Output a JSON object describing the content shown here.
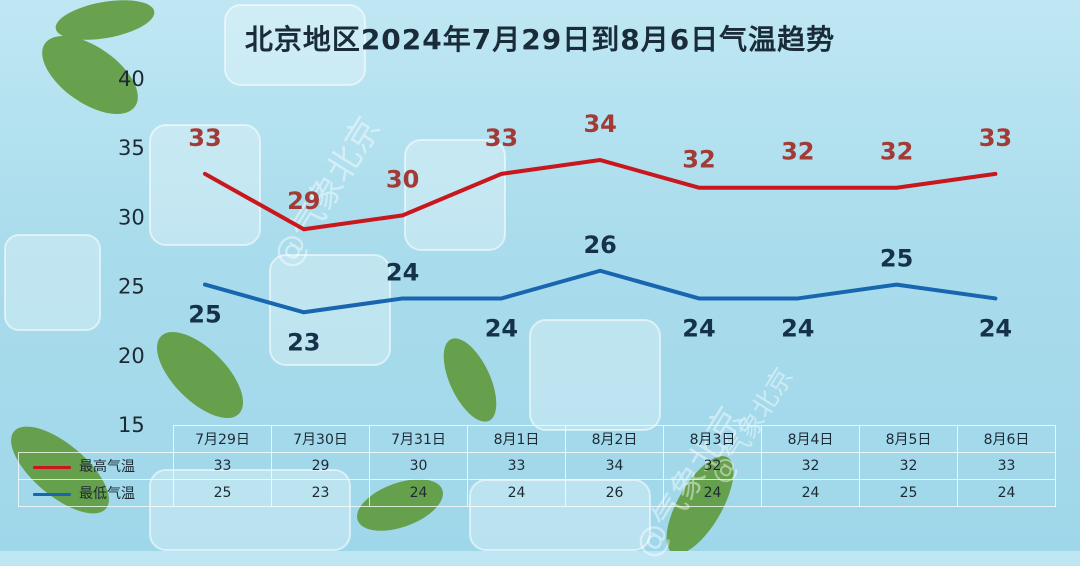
{
  "title": "北京地区2024年7月29日到8月6日气温趋势",
  "watermarks": [
    "@气象北京",
    "@气象北京",
    "@气象北京"
  ],
  "colors": {
    "high": "#c8181e",
    "low": "#1866b0",
    "high_label": "#a23a36",
    "low_label": "#16324a"
  },
  "chart_data": {
    "type": "line",
    "categories": [
      "7月29日",
      "7月30日",
      "7月31日",
      "8月1日",
      "8月2日",
      "8月3日",
      "8月4日",
      "8月5日",
      "8月6日"
    ],
    "series": [
      {
        "name": "最高气温",
        "values": [
          33,
          29,
          30,
          33,
          34,
          32,
          32,
          32,
          33
        ]
      },
      {
        "name": "最低气温",
        "values": [
          25,
          23,
          24,
          24,
          26,
          24,
          24,
          25,
          24
        ]
      }
    ],
    "ylim": [
      15,
      40
    ],
    "yticks": [
      15,
      20,
      25,
      30,
      35,
      40
    ],
    "legend": "data table below chart"
  }
}
